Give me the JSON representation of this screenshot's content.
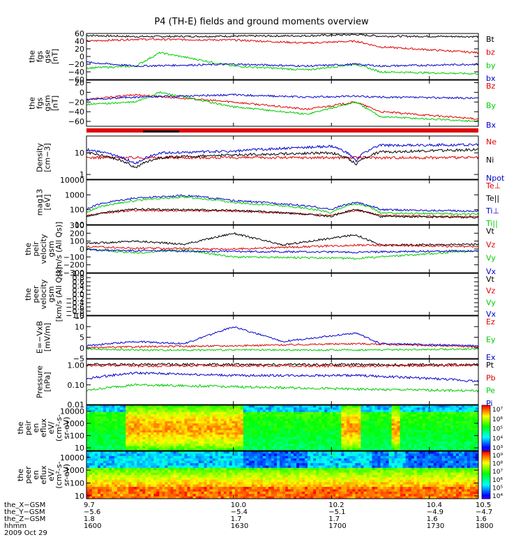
{
  "title": "P4 (TH-E) fields and ground moments overview",
  "colors": {
    "black": "#000000",
    "red": "#e00000",
    "green": "#00cc00",
    "blue": "#0000cc"
  },
  "chart_data": [
    {
      "type": "line",
      "ylabel": [
        "the",
        "fgs",
        "gse",
        "[nT]"
      ],
      "ylim": [
        -60,
        60
      ],
      "ticks": [
        "60",
        "40",
        "20",
        "0",
        "−20",
        "−40",
        "−60"
      ],
      "tick_values": [
        60,
        40,
        20,
        0,
        -20,
        -40,
        -60
      ],
      "series": [
        {
          "name": "Bt",
          "color": "black",
          "x": [
            9.7,
            9.8,
            10.0,
            10.15,
            10.25,
            10.3,
            10.5
          ],
          "values": [
            55,
            52,
            53,
            54,
            57,
            53,
            52
          ]
        },
        {
          "name": "bz",
          "color": "red",
          "x": [
            9.7,
            9.8,
            10.0,
            10.15,
            10.25,
            10.3,
            10.5
          ],
          "values": [
            40,
            45,
            43,
            35,
            40,
            25,
            10
          ]
        },
        {
          "name": "by",
          "color": "green",
          "x": [
            9.7,
            9.8,
            9.85,
            10.0,
            10.15,
            10.25,
            10.3,
            10.5
          ],
          "values": [
            -30,
            -25,
            10,
            -25,
            -35,
            -20,
            -40,
            -45
          ]
        },
        {
          "name": "bx",
          "color": "blue",
          "x": [
            9.7,
            9.8,
            10.0,
            10.15,
            10.25,
            10.3,
            10.5
          ],
          "values": [
            -15,
            -25,
            -20,
            -25,
            -20,
            -25,
            -20
          ]
        }
      ]
    },
    {
      "type": "line",
      "ylabel": [
        "the",
        "fgs",
        "gsm",
        "[nT]"
      ],
      "ylim": [
        -70,
        25
      ],
      "ticks": [
        "20",
        "0",
        "−20",
        "−40",
        "−60"
      ],
      "tick_values": [
        20,
        0,
        -20,
        -40,
        -60
      ],
      "series": [
        {
          "name": "Bz",
          "color": "red",
          "x": [
            9.7,
            9.8,
            10.0,
            10.15,
            10.25,
            10.3,
            10.5
          ],
          "values": [
            -15,
            -5,
            -20,
            -35,
            -20,
            -40,
            -55
          ]
        },
        {
          "name": "By",
          "color": "green",
          "x": [
            9.7,
            9.8,
            9.85,
            10.0,
            10.15,
            10.25,
            10.3,
            10.5
          ],
          "values": [
            -25,
            -20,
            0,
            -30,
            -45,
            -20,
            -50,
            -60
          ]
        },
        {
          "name": "Bx",
          "color": "blue",
          "x": [
            9.7,
            9.8,
            10.0,
            10.15,
            10.25,
            10.3,
            10.5
          ],
          "values": [
            -15,
            -10,
            -5,
            -10,
            -8,
            -10,
            -12
          ]
        }
      ]
    },
    {
      "type": "line",
      "ylabel": [
        "Density",
        "[cm−3]"
      ],
      "log": true,
      "ylim": [
        0.6,
        60
      ],
      "ticks": [
        "10",
        "1"
      ],
      "tick_values": [
        10,
        1
      ],
      "series": [
        {
          "name": "Ne",
          "color": "red",
          "x": [
            9.7,
            10.5
          ],
          "values": [
            6,
            6
          ]
        },
        {
          "name": "Ni",
          "color": "black",
          "x": [
            9.7,
            9.8,
            9.85,
            10.0,
            10.2,
            10.25,
            10.3,
            10.5
          ],
          "values": [
            10,
            2,
            6,
            8,
            10,
            3,
            11,
            14
          ]
        },
        {
          "name": "Npot",
          "color": "blue",
          "x": [
            9.7,
            9.8,
            9.85,
            10.0,
            10.2,
            10.25,
            10.3,
            10.5
          ],
          "values": [
            14,
            3,
            10,
            12,
            20,
            4,
            22,
            24
          ]
        }
      ]
    },
    {
      "type": "line",
      "ylabel": [
        "mag13",
        "[eV]"
      ],
      "log": true,
      "ylim": [
        10,
        10000
      ],
      "ticks": [
        "10000",
        "1000",
        "100",
        "10"
      ],
      "tick_values": [
        10000,
        1000,
        100,
        10
      ],
      "series": [
        {
          "name": "Te⊥",
          "color": "red",
          "x": [
            9.7,
            9.8,
            10.0,
            10.2,
            10.25,
            10.3,
            10.5
          ],
          "values": [
            40,
            90,
            80,
            40,
            90,
            40,
            35
          ]
        },
        {
          "name": "Te||",
          "color": "black",
          "x": [
            9.7,
            9.8,
            10.0,
            10.2,
            10.25,
            10.3,
            10.5
          ],
          "values": [
            35,
            110,
            90,
            35,
            100,
            35,
            30
          ]
        },
        {
          "name": "Ti⊥",
          "color": "blue",
          "x": [
            9.7,
            9.8,
            9.9,
            10.0,
            10.2,
            10.25,
            10.3,
            10.5
          ],
          "values": [
            100,
            600,
            900,
            400,
            100,
            300,
            100,
            80
          ]
        },
        {
          "name": "Ti||",
          "color": "green",
          "x": [
            9.7,
            9.8,
            9.9,
            10.0,
            10.2,
            10.25,
            10.3,
            10.5
          ],
          "values": [
            60,
            400,
            700,
            300,
            60,
            250,
            60,
            50
          ]
        }
      ]
    },
    {
      "type": "line",
      "ylabel": [
        "the",
        "peir",
        "velocity",
        "gsm",
        "[km/s (All Qs)]"
      ],
      "ylim": [
        -300,
        300
      ],
      "ticks": [
        "300",
        "200",
        "100",
        "0",
        "−100",
        "−200",
        "−300"
      ],
      "tick_values": [
        300,
        200,
        100,
        0,
        -100,
        -200,
        -300
      ],
      "series": [
        {
          "name": "Vt",
          "color": "black",
          "x": [
            9.7,
            9.8,
            9.9,
            10.0,
            10.1,
            10.25,
            10.3,
            10.5
          ],
          "values": [
            70,
            100,
            60,
            200,
            50,
            180,
            50,
            60
          ]
        },
        {
          "name": "Vz",
          "color": "red",
          "x": [
            9.7,
            9.8,
            10.0,
            10.25,
            10.5
          ],
          "values": [
            30,
            10,
            0,
            50,
            30
          ]
        },
        {
          "name": "Vy",
          "color": "green",
          "x": [
            9.7,
            9.8,
            9.9,
            10.0,
            10.25,
            10.5
          ],
          "values": [
            0,
            -50,
            -10,
            -100,
            -120,
            -20
          ]
        },
        {
          "name": "Vx",
          "color": "blue",
          "x": [
            9.7,
            9.8,
            10.0,
            10.25,
            10.5
          ],
          "values": [
            -10,
            -20,
            -30,
            -40,
            -20
          ]
        }
      ]
    },
    {
      "type": "line",
      "ylabel": [
        "the",
        "peer",
        "velocity",
        "gsm",
        "[km/s (All Qs)]"
      ],
      "ylim": [
        -1,
        1
      ],
      "ticks": [
        "1.0",
        "0.8",
        "0.6",
        "0.4",
        "0.2",
        "0.0",
        "−0.2",
        "−0.4",
        "−0.6",
        "−0.8",
        "−1.0"
      ],
      "tick_values": [
        1,
        0.8,
        0.6,
        0.4,
        0.2,
        0,
        -0.2,
        -0.4,
        -0.6,
        -0.8,
        -1
      ],
      "series": [
        {
          "name": "Vt",
          "color": "black",
          "x": [],
          "values": []
        },
        {
          "name": "Vz",
          "color": "red",
          "x": [],
          "values": []
        },
        {
          "name": "Vy",
          "color": "green",
          "x": [],
          "values": []
        },
        {
          "name": "Vx",
          "color": "blue",
          "x": [],
          "values": []
        }
      ]
    },
    {
      "type": "line",
      "ylabel": [
        "E=−VxB",
        "[mV/m]"
      ],
      "ylim": [
        -5,
        15
      ],
      "ticks": [
        "15",
        "10",
        "5",
        "0",
        "−5"
      ],
      "tick_values": [
        15,
        10,
        5,
        0,
        -5
      ],
      "series": [
        {
          "name": "Ez",
          "color": "red",
          "x": [
            9.7,
            9.8,
            10.0,
            10.25,
            10.5
          ],
          "values": [
            0,
            0.5,
            1,
            2,
            0.5
          ]
        },
        {
          "name": "Ey",
          "color": "green",
          "x": [
            9.7,
            9.8,
            10.0,
            10.25,
            10.5
          ],
          "values": [
            -0.5,
            -1,
            -1,
            -1,
            -0.5
          ]
        },
        {
          "name": "Ex",
          "color": "blue",
          "x": [
            9.7,
            9.8,
            9.9,
            10.0,
            10.1,
            10.25,
            10.3,
            10.5
          ],
          "values": [
            1,
            3,
            2,
            10,
            3,
            7,
            2,
            1
          ]
        }
      ]
    },
    {
      "type": "line",
      "ylabel": [
        "Pressure",
        "[nPa]"
      ],
      "log": true,
      "ylim": [
        0.01,
        2
      ],
      "ticks": [
        "1.00",
        "0.10",
        "0.01"
      ],
      "tick_values": [
        1,
        0.1,
        0.01
      ],
      "series": [
        {
          "name": "Pt",
          "color": "black",
          "x": [
            9.7,
            10.5
          ],
          "values": [
            1.1,
            1.05
          ]
        },
        {
          "name": "Pb",
          "color": "red",
          "x": [
            9.7,
            9.8,
            10.0,
            10.25,
            10.5
          ],
          "values": [
            1.0,
            0.9,
            0.95,
            0.9,
            1.0
          ]
        },
        {
          "name": "Pe",
          "color": "green",
          "x": [
            9.7,
            9.8,
            10.0,
            10.25,
            10.5
          ],
          "values": [
            0.05,
            0.1,
            0.08,
            0.06,
            0.05
          ]
        },
        {
          "name": "Pi",
          "color": "blue",
          "x": [
            9.7,
            9.8,
            10.0,
            10.25,
            10.5
          ],
          "values": [
            0.2,
            0.4,
            0.3,
            0.3,
            0.15
          ]
        }
      ]
    },
    {
      "type": "heatmap",
      "ylabel": [
        "the",
        "peir",
        "en",
        "eflux",
        "eV/",
        "(cm²-s-",
        "sr-eV)"
      ],
      "log": true,
      "ylim": [
        6,
        30000
      ],
      "ticks": [
        "10000",
        "1000",
        "100",
        "10"
      ],
      "tick_values": [
        10000,
        1000,
        100,
        10
      ],
      "colorbar": {
        "labels": [
          "10⁷",
          "10⁶",
          "10⁵",
          "10⁴",
          "10³"
        ]
      }
    },
    {
      "type": "heatmap",
      "ylabel": [
        "the",
        "peer",
        "en",
        "eflux",
        "eV/",
        "(cm²-s-",
        "sr-eV)"
      ],
      "log": true,
      "ylim": [
        6,
        30000
      ],
      "ticks": [
        "10000",
        "1000",
        "100",
        "10"
      ],
      "tick_values": [
        10000,
        1000,
        100,
        10
      ],
      "colorbar": {
        "labels": [
          "10⁹",
          "10⁸",
          "10⁷",
          "10⁶",
          "10⁵",
          "10⁴"
        ]
      }
    }
  ],
  "x_axis": {
    "tick_labels": [
      "9.7",
      "10.0",
      "10.2",
      "10.4",
      "10.5"
    ],
    "tick_values": [
      9.7,
      10.0,
      10.2,
      10.4,
      10.5
    ],
    "ephemeris": [
      {
        "name": "the_X−GSM",
        "values": [
          "9.7",
          "10.0",
          "10.2",
          "10.4",
          "10.5"
        ]
      },
      {
        "name": "the_Y−GSM",
        "values": [
          "−5.6",
          "−5.4",
          "−5.1",
          "−4.9",
          "−4.7"
        ]
      },
      {
        "name": "the_Z−GSM",
        "values": [
          "1.8",
          "1.7",
          "1.7",
          "1.6",
          "1.6"
        ]
      },
      {
        "name": "hhmm",
        "values": [
          "1600",
          "1630",
          "1700",
          "1730",
          "1800"
        ]
      }
    ],
    "date": "2009 Oct 29"
  }
}
